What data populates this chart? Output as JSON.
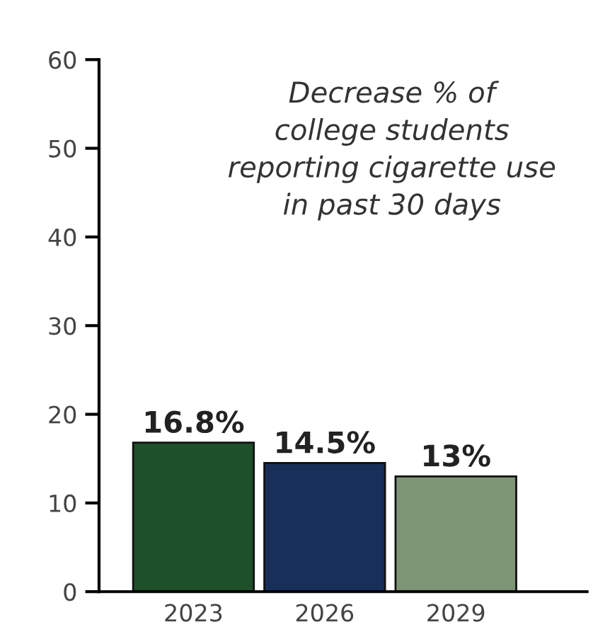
{
  "chart_data": {
    "type": "bar",
    "title": "Decrease % of\ncollege students\nreporting cigarette use\nin past 30 days",
    "categories": [
      "2023",
      "2026",
      "2029"
    ],
    "values": [
      16.8,
      14.5,
      13
    ],
    "colors": [
      "#1e5029",
      "#182f5a",
      "#7e9576"
    ],
    "value_labels": [
      "16.8%",
      "14.5%",
      "13%"
    ],
    "ylim": [
      0,
      60
    ],
    "yticks": [
      0,
      10,
      20,
      30,
      40,
      50,
      60
    ],
    "grid": false
  }
}
